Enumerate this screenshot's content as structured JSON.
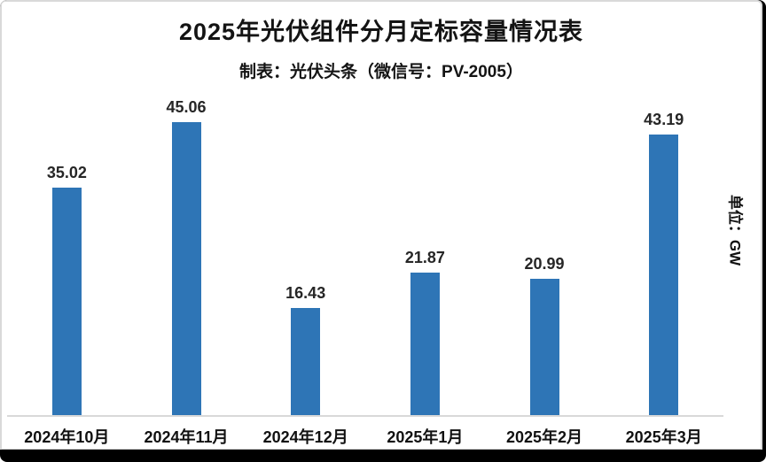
{
  "header": {
    "title": "2025年光伏组件分月定标容量情况表",
    "subtitle": "制表：光伏头条（微信号：PV-2005）"
  },
  "chart_data": {
    "type": "bar",
    "title": "2025年光伏组件分月定标容量情况表",
    "subtitle": "制表：光伏头条（微信号：PV-2005）",
    "categories": [
      "2024年10月",
      "2024年11月",
      "2024年12月",
      "2025年1月",
      "2025年2月",
      "2025年3月"
    ],
    "values": [
      35.02,
      45.06,
      16.43,
      21.87,
      20.99,
      43.19
    ],
    "value_labels": [
      "35.02",
      "45.06",
      "16.43",
      "21.87",
      "20.99",
      "43.19"
    ],
    "unit_label": "单位：GW",
    "xlabel": "",
    "ylabel": "单位：GW",
    "ylim": [
      0,
      50
    ],
    "grid": false,
    "legend": "none",
    "bar_color": "#2e75b6",
    "axis_line_color": "#d9d9d9"
  }
}
